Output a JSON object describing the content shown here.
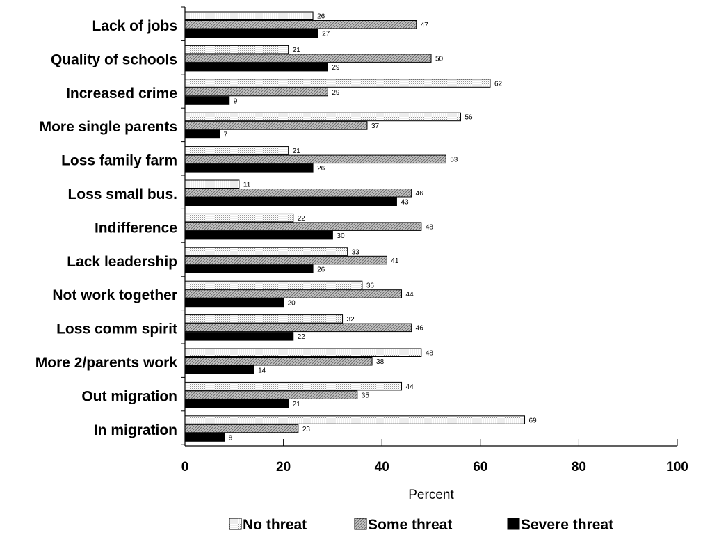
{
  "chart_data": {
    "type": "bar",
    "orientation": "horizontal",
    "categories": [
      "Lack of jobs",
      "Quality of schools",
      "Increased crime",
      "More single parents",
      "Loss family farm",
      "Loss small bus.",
      "Indifference",
      "Lack leadership",
      "Not work together",
      "Loss comm spirit",
      "More 2/parents work",
      "Out migration",
      "In migration"
    ],
    "series": [
      {
        "name": "No threat",
        "values": [
          26,
          21,
          62,
          56,
          21,
          11,
          22,
          33,
          36,
          32,
          48,
          44,
          69
        ],
        "fill": "dotted-light"
      },
      {
        "name": "Some threat",
        "values": [
          47,
          50,
          29,
          37,
          53,
          46,
          48,
          41,
          44,
          46,
          38,
          35,
          23
        ],
        "fill": "hatched-gray"
      },
      {
        "name": "Severe threat",
        "values": [
          27,
          29,
          9,
          7,
          26,
          43,
          30,
          26,
          20,
          22,
          14,
          21,
          8
        ],
        "fill": "#000000"
      }
    ],
    "xlabel": "Percent",
    "xlim": [
      0,
      100
    ],
    "xticks": [
      "0",
      "20",
      "40",
      "60",
      "80",
      "100"
    ],
    "grid": false,
    "legend": "bottom"
  }
}
